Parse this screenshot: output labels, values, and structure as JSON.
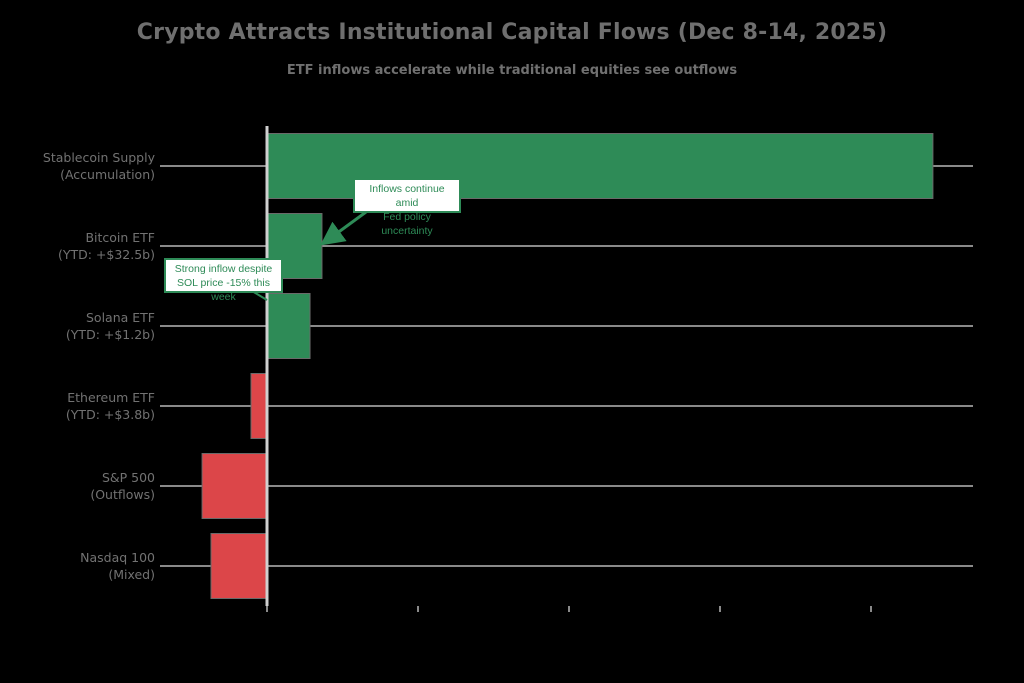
{
  "header": {
    "title": "Crypto Attracts Institutional Capital Flows (Dec 8-14, 2025)",
    "subtitle": "ETF inflows accelerate while traditional equities see outflows"
  },
  "categories": [
    {
      "line1": "Stablecoin Supply",
      "line2": "(Accumulation)"
    },
    {
      "line1": "Bitcoin ETF",
      "line2": "(YTD: +$32.5b)"
    },
    {
      "line1": "Solana ETF",
      "line2": "(YTD: +$1.2b)"
    },
    {
      "line1": "Ethereum ETF",
      "line2": "(YTD: +$3.8b)"
    },
    {
      "line1": "S&P 500",
      "line2": "(Outflows)"
    },
    {
      "line1": "Nasdaq 100",
      "line2": "(Mixed)"
    }
  ],
  "annotations": [
    {
      "line1": "Inflows continue amid",
      "line2": "Fed policy uncertainty",
      "target": "Bitcoin ETF"
    },
    {
      "line1": "Strong inflow despite",
      "line2": "SOL price -15% this week",
      "target": "Solana ETF"
    }
  ],
  "colors": {
    "inflow": "#2e8b57",
    "outflow": "#dc4649",
    "grid": "#8a8a8a",
    "zero_line": "#d0d0d0",
    "background": "#000000"
  },
  "chart_data": {
    "type": "bar",
    "orientation": "horizontal",
    "title": "Crypto Attracts Institutional Capital Flows (Dec 8-14, 2025)",
    "subtitle": "ETF inflows accelerate while traditional equities see outflows",
    "xlabel": "",
    "ylabel": "",
    "categories": [
      "Stablecoin Supply (Accumulation)",
      "Bitcoin ETF (YTD: +$32.5b)",
      "Solana ETF (YTD: +$1.2b)",
      "Ethereum ETF (YTD: +$3.8b)",
      "S&P 500 (Outflows)",
      "Nasdaq 100 (Mixed)"
    ],
    "values": [
      4410,
      364,
      285,
      -106,
      -430,
      -371
    ],
    "units": "USD millions (estimated; tick labels and data labels not legible)",
    "xlim": [
      -600,
      4700
    ],
    "x_ticks": [
      0,
      1000,
      2000,
      3000,
      4000
    ],
    "grid": true,
    "legend": "none",
    "bar_colors": [
      "#2e8b57",
      "#2e8b57",
      "#2e8b57",
      "#dc4649",
      "#dc4649",
      "#dc4649"
    ],
    "annotations": [
      {
        "text": "Inflows continue amid Fed policy uncertainty",
        "points_to": "Bitcoin ETF"
      },
      {
        "text": "Strong inflow despite SOL price -15% this week",
        "points_to": "Solana ETF"
      }
    ]
  }
}
